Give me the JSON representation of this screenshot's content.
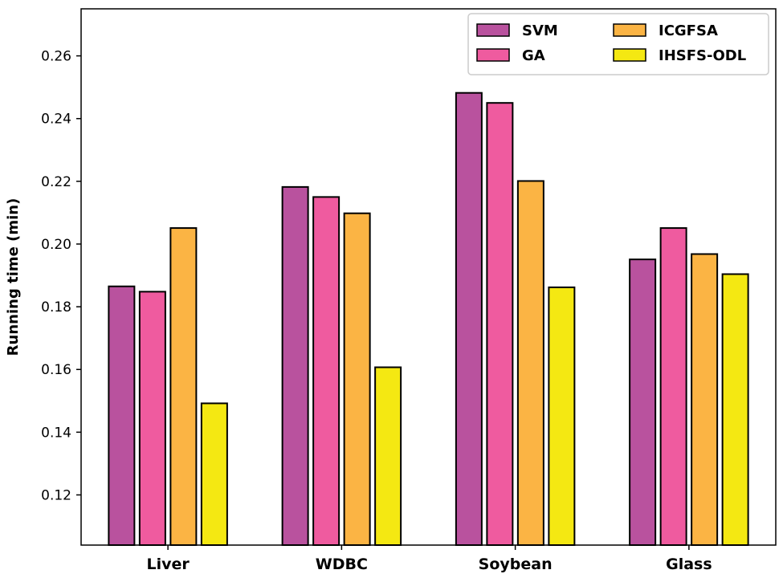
{
  "chart_data": {
    "type": "bar",
    "title": "",
    "xlabel": "",
    "ylabel": "Running time (min)",
    "ylim": [
      0.104,
      0.275
    ],
    "yticks": [
      "0.12",
      "0.14",
      "0.16",
      "0.18",
      "0.20",
      "0.22",
      "0.24",
      "0.26"
    ],
    "categories": [
      "Liver",
      "WDBC",
      "Soybean",
      "Glass"
    ],
    "legend_position": "top-right",
    "series": [
      {
        "name": "SVM",
        "color": "#b9529e",
        "values": [
          0.1865,
          0.2182,
          0.2482,
          0.1951
        ]
      },
      {
        "name": "GA",
        "color": "#ef5b9f",
        "values": [
          0.1848,
          0.215,
          0.245,
          0.2051
        ]
      },
      {
        "name": "ICGFSA",
        "color": "#fbb444",
        "values": [
          0.2051,
          0.2098,
          0.2201,
          0.1968
        ]
      },
      {
        "name": "IHSFS-ODL",
        "color": "#f4e812",
        "values": [
          0.1492,
          0.1607,
          0.1862,
          0.1904
        ]
      }
    ]
  }
}
